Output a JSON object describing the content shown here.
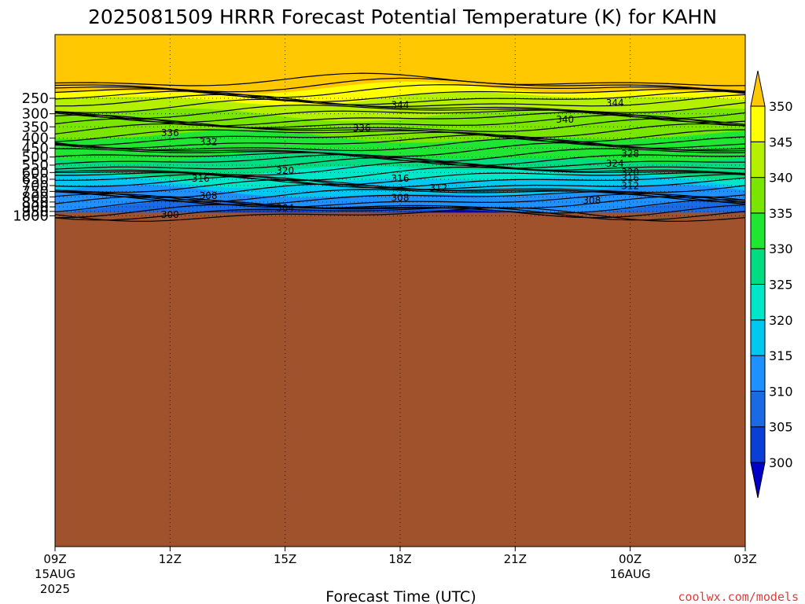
{
  "chart_data": {
    "type": "heatmap",
    "title": "2025081509 HRRR Forecast Potential Temperature (K) for KAHN",
    "xlabel": "Forecast Time (UTC)",
    "ylabel": "",
    "watermark": "coolwx.com/models",
    "x_ticks": [
      {
        "label": "09Z",
        "sub1": "15AUG",
        "sub2": "2025",
        "hour": 0
      },
      {
        "label": "12Z",
        "sub1": "",
        "sub2": "",
        "hour": 3
      },
      {
        "label": "15Z",
        "sub1": "",
        "sub2": "",
        "hour": 6
      },
      {
        "label": "18Z",
        "sub1": "",
        "sub2": "",
        "hour": 9
      },
      {
        "label": "21Z",
        "sub1": "",
        "sub2": "",
        "hour": 12
      },
      {
        "label": "00Z",
        "sub1": "16AUG",
        "sub2": "",
        "hour": 15
      },
      {
        "label": "03Z",
        "sub1": "",
        "sub2": "",
        "hour": 18
      }
    ],
    "xlim": [
      0,
      18
    ],
    "y_ticks": [
      250,
      300,
      350,
      400,
      450,
      500,
      550,
      600,
      650,
      700,
      750,
      800,
      850,
      900,
      950,
      1000
    ],
    "ylim": [
      1000,
      200
    ],
    "y_scale": "log-pressure",
    "grid": "dotted",
    "colorbar": {
      "levels": [
        300,
        305,
        310,
        315,
        320,
        325,
        330,
        335,
        340,
        345,
        350
      ],
      "colors": [
        "#0000c8",
        "#0a3fd6",
        "#1a6ae6",
        "#1e90ff",
        "#00c8f0",
        "#00e6c8",
        "#00dc82",
        "#1ee632",
        "#7ae600",
        "#b4f000",
        "#ffff00",
        "#ffc800"
      ],
      "extend": "both"
    },
    "contour_labels": [
      {
        "text": "344",
        "hour": 9.0,
        "pressure": 268
      },
      {
        "text": "344",
        "hour": 14.6,
        "pressure": 262
      },
      {
        "text": "340",
        "hour": 13.3,
        "pressure": 318
      },
      {
        "text": "336",
        "hour": 3.0,
        "pressure": 373
      },
      {
        "text": "336",
        "hour": 8.0,
        "pressure": 352
      },
      {
        "text": "332",
        "hour": 4.0,
        "pressure": 415
      },
      {
        "text": "328",
        "hour": 15.0,
        "pressure": 476
      },
      {
        "text": "324",
        "hour": 14.6,
        "pressure": 535
      },
      {
        "text": "320",
        "hour": 6.0,
        "pressure": 582
      },
      {
        "text": "320",
        "hour": 15.0,
        "pressure": 592
      },
      {
        "text": "316",
        "hour": 3.8,
        "pressure": 637
      },
      {
        "text": "316",
        "hour": 9.0,
        "pressure": 637
      },
      {
        "text": "316",
        "hour": 15.0,
        "pressure": 635
      },
      {
        "text": "312",
        "hour": 10.0,
        "pressure": 715
      },
      {
        "text": "312",
        "hour": 15.0,
        "pressure": 697
      },
      {
        "text": "308",
        "hour": 4.0,
        "pressure": 782
      },
      {
        "text": "308",
        "hour": 9.0,
        "pressure": 800
      },
      {
        "text": "308",
        "hour": 14.0,
        "pressure": 826
      },
      {
        "text": "304",
        "hour": 6.0,
        "pressure": 902
      },
      {
        "text": "300",
        "hour": 3.0,
        "pressure": 978
      }
    ],
    "surface_color": "#a0522d"
  }
}
